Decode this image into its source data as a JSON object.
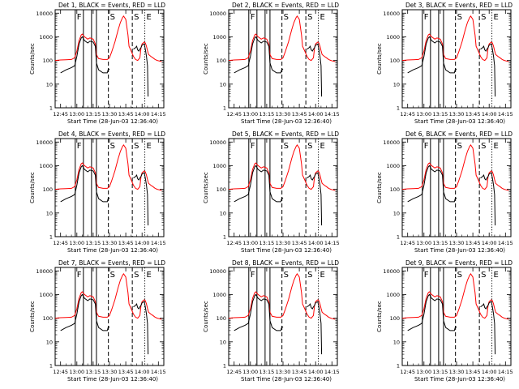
{
  "figure": {
    "background": "#ffffff",
    "events_color": "#000000",
    "lld_color": "#ff0000"
  },
  "chart_data": [
    {
      "type": "line",
      "title": "Det 1, BLACK = Events, RED = LLD",
      "detector": 1
    },
    {
      "type": "line",
      "title": "Det 2, BLACK = Events, RED = LLD",
      "detector": 2
    },
    {
      "type": "line",
      "title": "Det 3, BLACK = Events, RED = LLD",
      "detector": 3
    },
    {
      "type": "line",
      "title": "Det 4, BLACK = Events, RED = LLD",
      "detector": 4
    },
    {
      "type": "line",
      "title": "Det 5, BLACK = Events, RED = LLD",
      "detector": 5
    },
    {
      "type": "line",
      "title": "Det 6, BLACK = Events, RED = LLD",
      "detector": 6
    },
    {
      "type": "line",
      "title": "Det 7, BLACK = Events, RED = LLD",
      "detector": 7
    },
    {
      "type": "line",
      "title": "Det 8, BLACK = Events, RED = LLD",
      "detector": 8
    },
    {
      "type": "line",
      "title": "Det 9, BLACK = Events, RED = LLD",
      "detector": 9
    }
  ],
  "shared": {
    "xlabel": "Start Time (28-Jun-03 12:36:40)",
    "ylabel": "Counts/sec",
    "x_ticks": [
      "12:45",
      "13:00",
      "13:15",
      "13:30",
      "13:45",
      "14:00",
      "14:15"
    ],
    "x_tick_minutes": [
      45,
      60,
      75,
      90,
      105,
      120,
      135
    ],
    "xlim_minutes": [
      40,
      140
    ],
    "y_ticks": [
      "1",
      "10",
      "100",
      "1000",
      "10000"
    ],
    "y_tick_values": [
      1,
      10,
      100,
      1000,
      10000
    ],
    "ylim": [
      1,
      14000
    ],
    "yscale": "log",
    "markers": [
      {
        "label": "F",
        "minute": 58.5,
        "style": "solid"
      },
      {
        "label": "S",
        "minute": 89,
        "style": "dashed"
      },
      {
        "label": "S",
        "minute": 111,
        "style": "dashed"
      },
      {
        "label": "E",
        "minute": 122.5,
        "style": "dotted"
      }
    ],
    "gap_lines_minutes": [
      66,
      73.5,
      78
    ],
    "lld_series": {
      "name": "LLD",
      "minutes": [
        40,
        45,
        50,
        55,
        58,
        60,
        62,
        64,
        65,
        67,
        70,
        72,
        75,
        77,
        78,
        80,
        84,
        88,
        90,
        92,
        95,
        98,
        100,
        102,
        103,
        105,
        107,
        108,
        110,
        112,
        114,
        116,
        118,
        119,
        120,
        122,
        123,
        124,
        125,
        126,
        128,
        130,
        132,
        134,
        136,
        138
      ],
      "values": [
        100,
        105,
        108,
        110,
        130,
        250,
        700,
        1200,
        1300,
        1000,
        800,
        900,
        800,
        500,
        180,
        120,
        110,
        110,
        130,
        230,
        600,
        2000,
        4000,
        6500,
        7500,
        5500,
        1200,
        400,
        250,
        150,
        110,
        100,
        130,
        350,
        500,
        600,
        550,
        400,
        260,
        180,
        150,
        130,
        110,
        100,
        95,
        90
      ]
    },
    "events_series": {
      "name": "Events",
      "minutes": [
        45,
        50,
        55,
        58,
        60,
        62,
        64,
        65,
        67,
        70,
        72,
        75,
        77,
        78,
        80,
        84,
        88,
        89,
        90,
        111,
        112,
        114,
        115,
        116,
        117,
        118,
        119,
        120,
        122,
        123,
        124,
        125,
        125.5
      ],
      "values": [
        30,
        40,
        50,
        60,
        150,
        500,
        900,
        1000,
        700,
        550,
        650,
        600,
        400,
        80,
        40,
        30,
        30,
        45,
        40,
        null,
        300,
        350,
        400,
        280,
        250,
        300,
        350,
        450,
        500,
        300,
        150,
        60,
        3
      ]
    }
  }
}
